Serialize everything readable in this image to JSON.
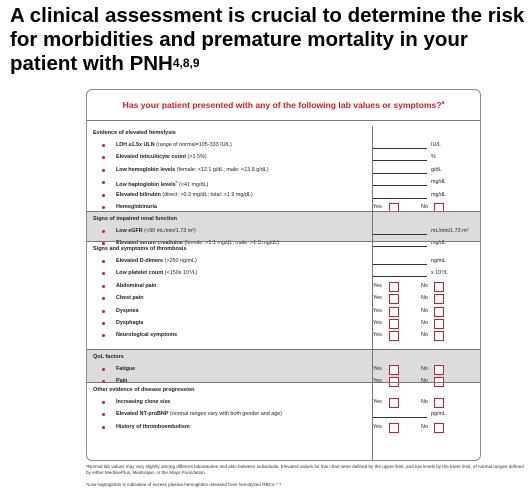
{
  "headline": {
    "text": "A clinical assessment is crucial to determine the risk for morbidities and premature mortality in your patient with PNH",
    "refs": "4,8,9"
  },
  "card": {
    "title": "Has your patient presented with any of the following lab values or symptoms?",
    "title_note": "a",
    "yes_label": "Yes",
    "no_label": "No",
    "colors": {
      "accent": "#c8202f",
      "shade": "#dcdcdc"
    },
    "sections": [
      {
        "heading": "Evidence of elevated hemolysis",
        "rows": [
          {
            "bold": "LDH ≥1.5x ULN",
            "rest": " (range of normal=105-333 IU/L)",
            "unit": "IU/L"
          },
          {
            "bold": "Elevated reticulocyte count",
            "rest": " (>1.5%)",
            "unit": "%"
          },
          {
            "bold": "Low hemoglobin levels",
            "rest": " (female: <12.1 g/dL; male: <13.8 g/dL)",
            "unit": "g/dL"
          },
          {
            "bold": "Low haptoglobin levels",
            "sup": "b",
            "rest": " (<41 mg/dL)",
            "unit": "mg/dL"
          },
          {
            "bold": "Elevated bilirubin",
            "rest": " (direct: >0.3 mg/dL; total: >1.9 mg/dL)",
            "unit": "mg/dL"
          },
          {
            "bold": "Hemoglobinuria",
            "rest": "",
            "yesno": true
          }
        ]
      },
      {
        "heading": "Signs of impaired renal function",
        "rows": [
          {
            "bold": "Low eGFR",
            "rest": " (<90 mL/min/1.73 m²)",
            "unit": "mL/min/1.73 m²"
          },
          {
            "bold": "Elevated serum creatinine",
            "rest": " (female: >1.1 mg/dL; male: >1.3 mg/dL)",
            "unit": "mg/dL"
          }
        ]
      },
      {
        "heading": "Signs and symptoms of thrombosis",
        "rows": [
          {
            "bold": "Elevated D-dimers",
            "rest": " (>250 ng/mL)",
            "unit": "ng/mL"
          },
          {
            "bold": "Low platelet count",
            "rest": " (<150x 10⁹/L)",
            "unit": "x 10⁹/L"
          },
          {
            "bold": "Abdominal pain",
            "rest": "",
            "yesno": true
          },
          {
            "bold": "Chest pain",
            "rest": "",
            "yesno": true
          },
          {
            "bold": "Dyspnea",
            "rest": "",
            "yesno": true
          },
          {
            "bold": "Dysphagia",
            "rest": "",
            "yesno": true
          },
          {
            "bold": "Neurological symptoms",
            "rest": "",
            "yesno": true
          }
        ]
      },
      {
        "heading": "QoL factors",
        "rows": [
          {
            "bold": "Fatigue",
            "rest": "",
            "yesno": true
          },
          {
            "bold": "Pain",
            "rest": "",
            "yesno": true
          }
        ]
      },
      {
        "heading": "Other evidence of disease progression",
        "rows": [
          {
            "bold": "Increasing clone size",
            "rest": "",
            "yesno": true
          },
          {
            "bold": "Elevated NT-proBNP",
            "rest": " (normal ranges vary with both gender and age)",
            "unit": "pg/mL"
          },
          {
            "bold": "History of thromboembolism",
            "rest": "",
            "yesno": true
          }
        ]
      }
    ]
  },
  "footnotes": {
    "a": "ᵃNormal lab values may vary slightly among different laboratories and also between individuals. Elevated values for this chart were defined by the upper limit, and low levels by the lower limit, of normal ranges defined by either MedlinePlus, Medscape, or the Mayo Foundation.",
    "b": "ᵇLow haptoglobin is indicative of excess plasma hemoglobin released from hemolyzed RBCs.¹⁻³"
  }
}
